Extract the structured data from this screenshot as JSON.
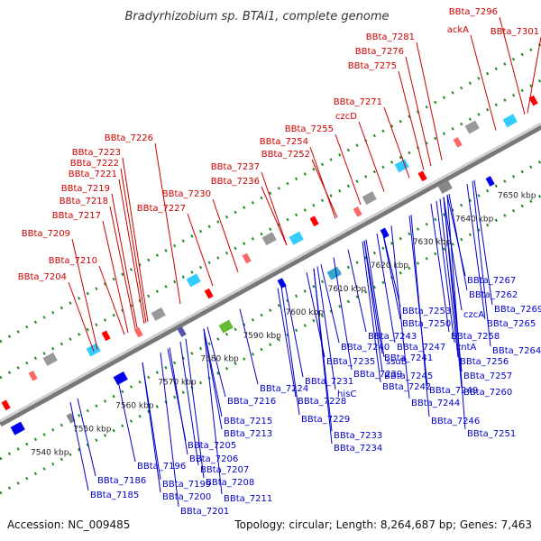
{
  "title": "Bradyrhizobium sp. BTAi1, complete genome",
  "footer": {
    "accession": "Accession: NC_009485",
    "topology": "Topology: circular; Length: 8,264,687 bp; Genes: 7,463"
  },
  "colors": {
    "upper_label": "#cc0000",
    "lower_label": "#0000cc",
    "forward_gene": "#ff0000",
    "reverse_gene": "#0000ee",
    "dots": "#228822"
  },
  "ticks": [
    "7540 kbp",
    "7550 kbp",
    "7560 kbp",
    "7570 kbp",
    "7580 kbp",
    "7590 kbp",
    "7600 kbp",
    "7610 kbp",
    "7620 kbp",
    "7630 kbp",
    "7640 kbp",
    "7650 kbp"
  ],
  "upper_labels": [
    "BBta_7296",
    "BBta_7301",
    "ackA",
    "BBta_7281",
    "BBta_7276",
    "BBta_7275",
    "BBta_7271",
    "czcD",
    "BBta_7255",
    "BBta_7254",
    "BBta_7252",
    "BBta_7237",
    "BBta_7236",
    "BBta_7230",
    "BBta_7227",
    "BBta_7226",
    "BBta_7223",
    "BBta_7222",
    "BBta_7221",
    "BBta_7219",
    "BBta_7218",
    "BBta_7217",
    "BBta_7209",
    "BBta_7210",
    "BBta_7204"
  ],
  "lower_labels": [
    "BBta_7267",
    "BBta_7262",
    "BBta_7269",
    "czcA",
    "BBta_7265",
    "BBta_7253",
    "BBta_7250",
    "BBta_7258",
    "BBta_7264",
    "BBta_7243",
    "BBta_7240",
    "BBta_7247",
    "zntA",
    "BBta_7256",
    "ssuB",
    "BBta_7241",
    "BBta_7235",
    "BBta_7257",
    "BBta_7239",
    "BBta_7245",
    "BBta_7231",
    "BBta_7242",
    "BBta_7249",
    "BBta_7260",
    "BBta_7224",
    "BBta_7228",
    "hisC",
    "BBta_7244",
    "BBta_7216",
    "BBta_7229",
    "BBta_7246",
    "BBta_7215",
    "BBta_7233",
    "BBta_7213",
    "BBta_7251",
    "BBta_7234",
    "BBta_7205",
    "BBta_7196",
    "BBta_7206",
    "BBta_7207",
    "BBta_7186",
    "BBta_7199",
    "BBta_7208",
    "BBta_7185",
    "BBta_7200",
    "BBta_7211",
    "BBta_7201"
  ]
}
